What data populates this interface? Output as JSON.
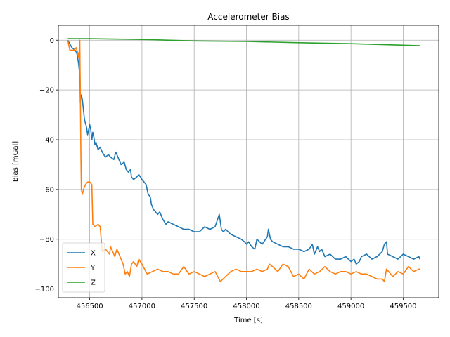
{
  "chart_data": {
    "type": "line",
    "title": "Accelerometer Bias",
    "xlabel": "Time [s]",
    "ylabel": "Bias [mGal]",
    "xlim": [
      456200,
      459840
    ],
    "ylim": [
      -103.5,
      6
    ],
    "xticks": [
      456500,
      457000,
      457500,
      458000,
      458500,
      459000,
      459500
    ],
    "yticks": [
      0,
      -20,
      -40,
      -60,
      -80,
      -100
    ],
    "grid": true,
    "legend": "lower-left",
    "series": [
      {
        "name": "X",
        "color": "#1f77b4",
        "x": [
          456290,
          456330,
          456360,
          456375,
          456385,
          456395,
          456400,
          456405,
          456410,
          456420,
          456430,
          456440,
          456450,
          456470,
          456480,
          456500,
          456510,
          456520,
          456530,
          456540,
          456550,
          456560,
          456580,
          456600,
          456620,
          456650,
          456680,
          456700,
          456730,
          456750,
          456780,
          456800,
          456830,
          456850,
          456870,
          456890,
          456900,
          456920,
          456950,
          456970,
          457000,
          457020,
          457040,
          457060,
          457080,
          457090,
          457100,
          457110,
          457150,
          457170,
          457200,
          457230,
          457250,
          457300,
          457350,
          457400,
          457450,
          457500,
          457550,
          457600,
          457650,
          457700,
          457740,
          457760,
          457780,
          457800,
          457850,
          457900,
          457950,
          457980,
          458000,
          458020,
          458050,
          458080,
          458100,
          458150,
          458200,
          458210,
          458230,
          458250,
          458300,
          458350,
          458400,
          458450,
          458500,
          458550,
          458600,
          458630,
          458650,
          458680,
          458700,
          458720,
          458750,
          458800,
          458850,
          458900,
          458950,
          459000,
          459030,
          459050,
          459080,
          459100,
          459150,
          459200,
          459250,
          459300,
          459320,
          459340,
          459350,
          459400,
          459450,
          459500,
          459550,
          459600,
          459650,
          459660
        ],
        "y": [
          0,
          -3,
          -4,
          -5,
          -7,
          -10,
          -12,
          -8,
          -25,
          -22,
          -24,
          -28,
          -32,
          -35,
          -38,
          -34,
          -36,
          -40,
          -37,
          -39,
          -42,
          -41,
          -44,
          -43,
          -45,
          -47,
          -46,
          -47,
          -48,
          -45,
          -48,
          -50,
          -49,
          -52,
          -53,
          -52,
          -55,
          -56,
          -55,
          -54,
          -56,
          -57,
          -58,
          -62,
          -63,
          -66,
          -67,
          -68,
          -70,
          -69,
          -72,
          -74,
          -73,
          -74,
          -75,
          -76,
          -76,
          -77,
          -77,
          -75,
          -76,
          -75,
          -70,
          -76,
          -77,
          -76,
          -78,
          -79,
          -80,
          -81,
          -82,
          -81,
          -83,
          -84,
          -80,
          -82,
          -79,
          -76,
          -80,
          -81,
          -82,
          -83,
          -83,
          -84,
          -84,
          -85,
          -84,
          -82,
          -86,
          -83,
          -85,
          -84,
          -87,
          -86,
          -88,
          -88,
          -87,
          -89,
          -88,
          -90,
          -89,
          -87,
          -86,
          -88,
          -87,
          -85,
          -82,
          -81,
          -86,
          -87,
          -88,
          -86,
          -87,
          -88,
          -87,
          -88
        ]
      },
      {
        "name": "Y",
        "color": "#ff7f0e",
        "x": [
          456290,
          456310,
          456330,
          456350,
          456370,
          456385,
          456395,
          456405,
          456415,
          456420,
          456430,
          456440,
          456460,
          456480,
          456500,
          456520,
          456530,
          456550,
          456580,
          456600,
          456620,
          456650,
          456670,
          456690,
          456700,
          456720,
          456740,
          456760,
          456800,
          456820,
          456840,
          456860,
          456880,
          456900,
          456920,
          456950,
          456970,
          457000,
          457050,
          457100,
          457150,
          457200,
          457250,
          457300,
          457350,
          457400,
          457450,
          457500,
          457550,
          457600,
          457650,
          457700,
          457750,
          457800,
          457850,
          457900,
          457950,
          458000,
          458050,
          458100,
          458150,
          458200,
          458220,
          458250,
          458300,
          458350,
          458400,
          458450,
          458500,
          458550,
          458600,
          458650,
          458700,
          458750,
          458800,
          458850,
          458900,
          458950,
          459000,
          459050,
          459100,
          459150,
          459200,
          459250,
          459300,
          459320,
          459340,
          459400,
          459450,
          459500,
          459550,
          459600,
          459650,
          459660
        ],
        "y": [
          0,
          -4,
          -4,
          -4,
          -3,
          -5,
          -7,
          0,
          -45,
          -60,
          -62,
          -60,
          -58,
          -57,
          -57,
          -58,
          -74,
          -75,
          -74,
          -75,
          -85,
          -84,
          -85,
          -86,
          -83,
          -85,
          -87,
          -84,
          -88,
          -90,
          -94,
          -93,
          -95,
          -90,
          -89,
          -91,
          -88,
          -90,
          -94,
          -93,
          -92,
          -93,
          -93,
          -94,
          -94,
          -91,
          -94,
          -93,
          -94,
          -95,
          -94,
          -93,
          -97,
          -95,
          -93,
          -92,
          -93,
          -93,
          -93,
          -92,
          -93,
          -92,
          -90,
          -91,
          -93,
          -90,
          -91,
          -95,
          -94,
          -96,
          -92,
          -94,
          -93,
          -91,
          -93,
          -94,
          -93,
          -93,
          -94,
          -93,
          -94,
          -94,
          -95,
          -96,
          -96,
          -97,
          -92,
          -95,
          -93,
          -94,
          -91,
          -93,
          -92,
          -92
        ]
      },
      {
        "name": "Z",
        "color": "#2ca02c",
        "x": [
          456290,
          456400,
          456500,
          457000,
          457500,
          458000,
          458500,
          459000,
          459500,
          459660
        ],
        "y": [
          0.6,
          0.6,
          0.6,
          0.3,
          -0.3,
          -0.5,
          -1.0,
          -1.4,
          -2.0,
          -2.2
        ]
      }
    ]
  }
}
